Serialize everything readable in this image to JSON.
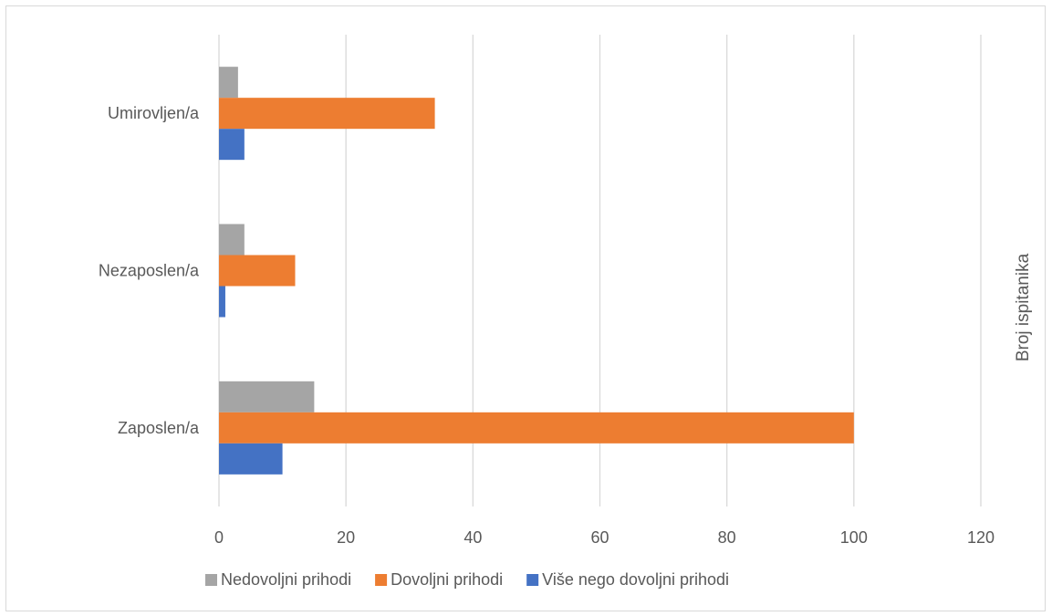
{
  "chart_data": {
    "type": "bar",
    "orientation": "horizontal",
    "categories": [
      "Zaposlen/a",
      "Nezaposlen/a",
      "Umirovljen/a"
    ],
    "series": [
      {
        "name": "Nedovoljni prihodi",
        "values": [
          15,
          4,
          3
        ],
        "color": "#a5a5a5"
      },
      {
        "name": "Dovoljni prihodi",
        "values": [
          100,
          12,
          34
        ],
        "color": "#ed7d31"
      },
      {
        "name": "Više nego dovoljni prihodi",
        "values": [
          10,
          1,
          4
        ],
        "color": "#4472c4"
      }
    ],
    "xlim": [
      0,
      120
    ],
    "xticks": [
      0,
      20,
      40,
      60,
      80,
      100,
      120
    ],
    "axis_title": "Broj ispitanika",
    "grid": true,
    "legend_position": "bottom"
  }
}
